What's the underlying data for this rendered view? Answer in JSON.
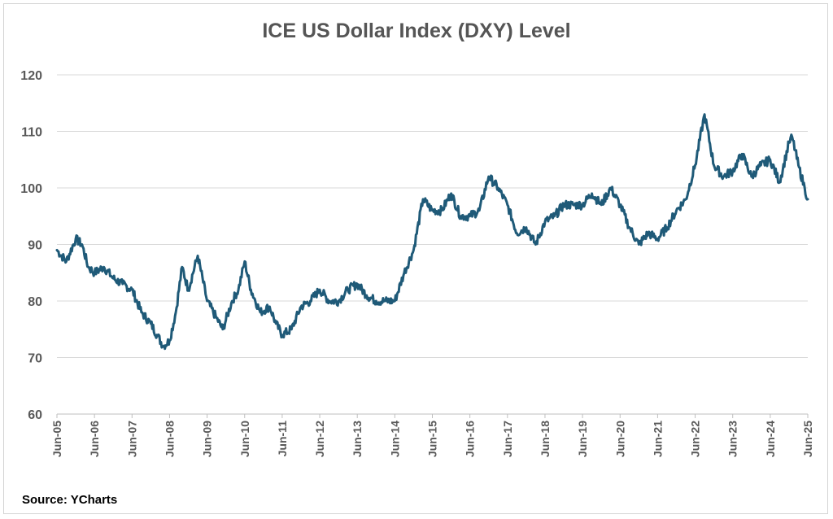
{
  "chart_data": {
    "type": "line",
    "title": "ICE US Dollar Index (DXY) Level",
    "xlabel": "",
    "ylabel": "",
    "source": "Source: YCharts",
    "ylim": [
      60,
      120
    ],
    "yticks": [
      60,
      70,
      80,
      90,
      100,
      110,
      120
    ],
    "x_tick_labels": [
      "Jun-05",
      "Jun-06",
      "Jun-07",
      "Jun-08",
      "Jun-09",
      "Jun-10",
      "Jun-11",
      "Jun-12",
      "Jun-13",
      "Jun-14",
      "Jun-15",
      "Jun-16",
      "Jun-17",
      "Jun-18",
      "Jun-19",
      "Jun-20",
      "Jun-21",
      "Jun-22",
      "Jun-23",
      "Jun-24",
      "Jun-25"
    ],
    "grid": true,
    "legend": "none",
    "line_color": "#1f5a78",
    "series": [
      {
        "points": [
          [
            "2005-06",
            89
          ],
          [
            "2005-09",
            87
          ],
          [
            "2005-12",
            91
          ],
          [
            "2006-02",
            90
          ],
          [
            "2006-04",
            86
          ],
          [
            "2006-06",
            85
          ],
          [
            "2006-09",
            86
          ],
          [
            "2006-12",
            84
          ],
          [
            "2007-03",
            83
          ],
          [
            "2007-06",
            82
          ],
          [
            "2007-09",
            78
          ],
          [
            "2007-12",
            76
          ],
          [
            "2008-02",
            74
          ],
          [
            "2008-04",
            72
          ],
          [
            "2008-06",
            73
          ],
          [
            "2008-08",
            78
          ],
          [
            "2008-10",
            86
          ],
          [
            "2008-12",
            82
          ],
          [
            "2009-03",
            88
          ],
          [
            "2009-06",
            80
          ],
          [
            "2009-09",
            77
          ],
          [
            "2009-11",
            75
          ],
          [
            "2010-02",
            80
          ],
          [
            "2010-04",
            82
          ],
          [
            "2010-06",
            87
          ],
          [
            "2010-08",
            82
          ],
          [
            "2010-11",
            78
          ],
          [
            "2011-02",
            79
          ],
          [
            "2011-04",
            76
          ],
          [
            "2011-06",
            74
          ],
          [
            "2011-09",
            75
          ],
          [
            "2011-12",
            79
          ],
          [
            "2012-03",
            80
          ],
          [
            "2012-06",
            82
          ],
          [
            "2012-09",
            80
          ],
          [
            "2012-12",
            80
          ],
          [
            "2013-03",
            82
          ],
          [
            "2013-06",
            83
          ],
          [
            "2013-09",
            81
          ],
          [
            "2013-12",
            80
          ],
          [
            "2014-03",
            80
          ],
          [
            "2014-06",
            80
          ],
          [
            "2014-09",
            85
          ],
          [
            "2014-12",
            89
          ],
          [
            "2015-03",
            98
          ],
          [
            "2015-06",
            96
          ],
          [
            "2015-09",
            96
          ],
          [
            "2015-12",
            99
          ],
          [
            "2016-03",
            95
          ],
          [
            "2016-06",
            95
          ],
          [
            "2016-09",
            96
          ],
          [
            "2016-12",
            102
          ],
          [
            "2017-03",
            100
          ],
          [
            "2017-06",
            97
          ],
          [
            "2017-09",
            92
          ],
          [
            "2017-12",
            93
          ],
          [
            "2018-03",
            90
          ],
          [
            "2018-06",
            94
          ],
          [
            "2018-09",
            95
          ],
          [
            "2018-12",
            97
          ],
          [
            "2019-03",
            97
          ],
          [
            "2019-06",
            97
          ],
          [
            "2019-09",
            99
          ],
          [
            "2019-12",
            97
          ],
          [
            "2020-03",
            100
          ],
          [
            "2020-06",
            97
          ],
          [
            "2020-09",
            93
          ],
          [
            "2020-12",
            90
          ],
          [
            "2021-03",
            92
          ],
          [
            "2021-06",
            91
          ],
          [
            "2021-09",
            93
          ],
          [
            "2021-12",
            96
          ],
          [
            "2022-03",
            98
          ],
          [
            "2022-06",
            104
          ],
          [
            "2022-09",
            113
          ],
          [
            "2022-12",
            104
          ],
          [
            "2023-03",
            102
          ],
          [
            "2023-06",
            103
          ],
          [
            "2023-09",
            106
          ],
          [
            "2023-12",
            102
          ],
          [
            "2024-03",
            104
          ],
          [
            "2024-06",
            105
          ],
          [
            "2024-09",
            101
          ],
          [
            "2024-12",
            108
          ],
          [
            "2025-01",
            109
          ],
          [
            "2025-03",
            104
          ],
          [
            "2025-05",
            100
          ],
          [
            "2025-06",
            98
          ]
        ]
      }
    ]
  }
}
